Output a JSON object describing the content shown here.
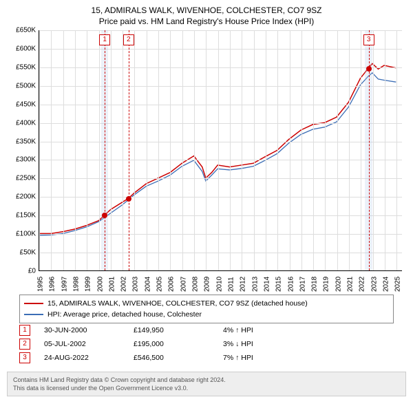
{
  "title": {
    "line1": "15, ADMIRALS WALK, WIVENHOE, COLCHESTER, CO7 9SZ",
    "line2": "Price paid vs. HM Land Registry's House Price Index (HPI)"
  },
  "chart": {
    "type": "line",
    "xlim": [
      1995,
      2025.5
    ],
    "ylim": [
      0,
      650000
    ],
    "ytick_step": 50000,
    "y_tick_labels": [
      "£0",
      "£50K",
      "£100K",
      "£150K",
      "£200K",
      "£250K",
      "£300K",
      "£350K",
      "£400K",
      "£450K",
      "£500K",
      "£550K",
      "£600K",
      "£650K"
    ],
    "x_ticks": [
      1995,
      1996,
      1997,
      1998,
      1999,
      2000,
      2001,
      2002,
      2003,
      2004,
      2005,
      2006,
      2007,
      2008,
      2009,
      2010,
      2011,
      2012,
      2013,
      2014,
      2015,
      2016,
      2017,
      2018,
      2019,
      2020,
      2021,
      2022,
      2023,
      2024,
      2025
    ],
    "grid_color": "#dddddd",
    "background_color": "#ffffff",
    "series": [
      {
        "name": "property",
        "label": "15, ADMIRALS WALK, WIVENHOE, COLCHESTER, CO7 9SZ (detached house)",
        "color": "#cc0000",
        "line_width": 1.5,
        "data": [
          [
            1995,
            100000
          ],
          [
            1996,
            100000
          ],
          [
            1997,
            105000
          ],
          [
            1998,
            112000
          ],
          [
            1999,
            122000
          ],
          [
            2000,
            135000
          ],
          [
            2000.5,
            149950
          ],
          [
            2001,
            165000
          ],
          [
            2002,
            185000
          ],
          [
            2002.5,
            195000
          ],
          [
            2003,
            210000
          ],
          [
            2004,
            235000
          ],
          [
            2005,
            250000
          ],
          [
            2006,
            265000
          ],
          [
            2007,
            290000
          ],
          [
            2008,
            310000
          ],
          [
            2008.7,
            280000
          ],
          [
            2009,
            250000
          ],
          [
            2009.5,
            265000
          ],
          [
            2010,
            285000
          ],
          [
            2011,
            280000
          ],
          [
            2012,
            285000
          ],
          [
            2013,
            290000
          ],
          [
            2014,
            308000
          ],
          [
            2015,
            325000
          ],
          [
            2016,
            355000
          ],
          [
            2017,
            380000
          ],
          [
            2018,
            395000
          ],
          [
            2019,
            400000
          ],
          [
            2020,
            415000
          ],
          [
            2021,
            455000
          ],
          [
            2022,
            520000
          ],
          [
            2022.65,
            546500
          ],
          [
            2023,
            560000
          ],
          [
            2023.5,
            545000
          ],
          [
            2024,
            555000
          ],
          [
            2025,
            548000
          ]
        ]
      },
      {
        "name": "hpi",
        "label": "HPI: Average price, detached house, Colchester",
        "color": "#3b6db5",
        "line_width": 1.3,
        "data": [
          [
            1995,
            95000
          ],
          [
            1996,
            96000
          ],
          [
            1997,
            100000
          ],
          [
            1998,
            108000
          ],
          [
            1999,
            118000
          ],
          [
            2000,
            132000
          ],
          [
            2001,
            155000
          ],
          [
            2002,
            178000
          ],
          [
            2003,
            205000
          ],
          [
            2004,
            228000
          ],
          [
            2005,
            242000
          ],
          [
            2006,
            258000
          ],
          [
            2007,
            282000
          ],
          [
            2008,
            298000
          ],
          [
            2008.7,
            268000
          ],
          [
            2009,
            242000
          ],
          [
            2009.5,
            258000
          ],
          [
            2010,
            275000
          ],
          [
            2011,
            272000
          ],
          [
            2012,
            276000
          ],
          [
            2013,
            282000
          ],
          [
            2014,
            298000
          ],
          [
            2015,
            316000
          ],
          [
            2016,
            345000
          ],
          [
            2017,
            368000
          ],
          [
            2018,
            382000
          ],
          [
            2019,
            388000
          ],
          [
            2020,
            402000
          ],
          [
            2021,
            442000
          ],
          [
            2022,
            502000
          ],
          [
            2022.65,
            525000
          ],
          [
            2023,
            535000
          ],
          [
            2023.5,
            518000
          ],
          [
            2024,
            515000
          ],
          [
            2025,
            510000
          ]
        ]
      }
    ],
    "markers": [
      {
        "n": "1",
        "x": 2000.5,
        "y": 149950,
        "band_width_years": 0.6
      },
      {
        "n": "2",
        "x": 2002.5,
        "y": 195000,
        "band_width_years": 0
      },
      {
        "n": "3",
        "x": 2022.65,
        "y": 546500,
        "band_width_years": 0.6
      }
    ],
    "marker_box_color": "#cc0000",
    "marker_band_color": "rgba(180,200,230,0.25)"
  },
  "legend": {
    "items": [
      {
        "color": "#cc0000",
        "label_key": "chart.series.0.label"
      },
      {
        "color": "#3b6db5",
        "label_key": "chart.series.1.label"
      }
    ]
  },
  "events": [
    {
      "n": "1",
      "date": "30-JUN-2000",
      "price": "£149,950",
      "pct": "4% ↑ HPI"
    },
    {
      "n": "2",
      "date": "05-JUL-2002",
      "price": "£195,000",
      "pct": "3% ↓ HPI"
    },
    {
      "n": "3",
      "date": "24-AUG-2022",
      "price": "£546,500",
      "pct": "7% ↑ HPI"
    }
  ],
  "footer": {
    "line1": "Contains HM Land Registry data © Crown copyright and database right 2024.",
    "line2": "This data is licensed under the Open Government Licence v3.0."
  }
}
